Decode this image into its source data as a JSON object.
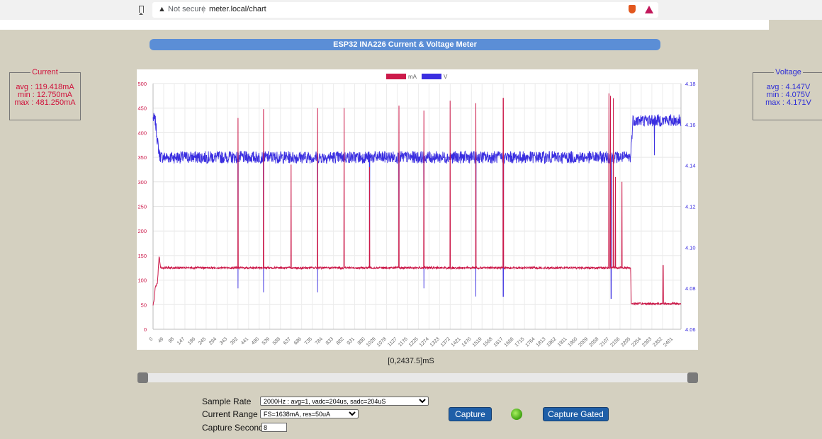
{
  "browser": {
    "security_label": "Not secure",
    "url": "meter.local/chart"
  },
  "page_title": "ESP32 INA226 Current & Voltage Meter",
  "current_box": {
    "legend": "Current",
    "avg": "avg : 119.418mA",
    "min": "min : 12.750mA",
    "max": "max : 481.250mA"
  },
  "voltage_box": {
    "legend": "Voltage",
    "avg": "avg : 4.147V",
    "min": "min : 4.075V",
    "max": "max : 4.171V"
  },
  "range_text": "[0,2437.5]mS",
  "controls": {
    "sample_rate_label": "Sample Rate",
    "sample_rate_value": "2000Hz : avg=1, vadc=204us, sadc=204uS",
    "current_range_label": "Current Range",
    "current_range_value": "FS=1638mA, res=50uA",
    "capture_seconds_label": "Capture Seconds",
    "capture_seconds_value": "8",
    "capture_label": "Capture",
    "capture_gated_label": "Capture Gated"
  },
  "colors": {
    "current": "#cc1a4a",
    "voltage": "#3a2ee0",
    "title_bar": "#5b8ed6",
    "led": "#5fc820"
  },
  "chart_data": {
    "type": "line",
    "legend_position": "top-center",
    "grid": true,
    "xlim": [
      0,
      2437.5
    ],
    "x_ticks": [
      "0",
      "49",
      "98",
      "147",
      "196",
      "245",
      "294",
      "343",
      "392",
      "441",
      "490",
      "539",
      "588",
      "637",
      "686",
      "735",
      "784",
      "833",
      "882",
      "931",
      "980",
      "1029",
      "1078",
      "1127",
      "1176",
      "1225",
      "1274",
      "1323",
      "1372",
      "1421",
      "1470",
      "1519",
      "1568",
      "1617",
      "1666",
      "1715",
      "1764",
      "1813",
      "1862",
      "1911",
      "1960",
      "2009",
      "2058",
      "2107",
      "2156",
      "2205",
      "2254",
      "2303",
      "2352",
      "2401"
    ],
    "y_left": {
      "ticks": [
        "0",
        "50",
        "100",
        "150",
        "200",
        "250",
        "300",
        "350",
        "400",
        "450",
        "500"
      ],
      "range": [
        0,
        500
      ]
    },
    "y_right": {
      "ticks": [
        "4.06",
        "4.08",
        "4.10",
        "4.12",
        "4.14",
        "4.16",
        "4.18"
      ],
      "range": [
        4.06,
        4.18
      ]
    },
    "series": [
      {
        "name": "mA",
        "axis": "left",
        "baseline": [
          [
            0,
            50
          ],
          [
            5,
            60
          ],
          [
            10,
            85
          ],
          [
            20,
            93
          ],
          [
            28,
            150
          ],
          [
            35,
            125
          ],
          [
            2160,
            125
          ],
          [
            2205,
            125
          ],
          [
            2208,
            52
          ],
          [
            2440,
            52
          ]
        ],
        "spikes": [
          [
            392,
            430
          ],
          [
            510,
            448
          ],
          [
            637,
            335
          ],
          [
            760,
            450
          ],
          [
            882,
            450
          ],
          [
            1000,
            330
          ],
          [
            1135,
            455
          ],
          [
            1250,
            445
          ],
          [
            1372,
            465
          ],
          [
            1490,
            460
          ],
          [
            1617,
            470
          ],
          [
            2105,
            480
          ],
          [
            2112,
            475
          ],
          [
            2125,
            470
          ],
          [
            2135,
            310
          ],
          [
            2165,
            300
          ],
          [
            2355,
            130
          ]
        ]
      },
      {
        "name": "V",
        "axis": "right",
        "baseline": [
          [
            0,
            4.163
          ],
          [
            10,
            4.162
          ],
          [
            20,
            4.152
          ],
          [
            30,
            4.145
          ],
          [
            40,
            4.144
          ],
          [
            2205,
            4.144
          ],
          [
            2215,
            4.162
          ],
          [
            2440,
            4.162
          ]
        ],
        "dips": [
          [
            392,
            4.08
          ],
          [
            510,
            4.078
          ],
          [
            760,
            4.078
          ],
          [
            1000,
            4.09
          ],
          [
            1135,
            4.09
          ],
          [
            1250,
            4.08
          ],
          [
            1490,
            4.076
          ],
          [
            1617,
            4.076
          ],
          [
            2115,
            4.075
          ],
          [
            2315,
            4.145
          ]
        ]
      }
    ]
  }
}
